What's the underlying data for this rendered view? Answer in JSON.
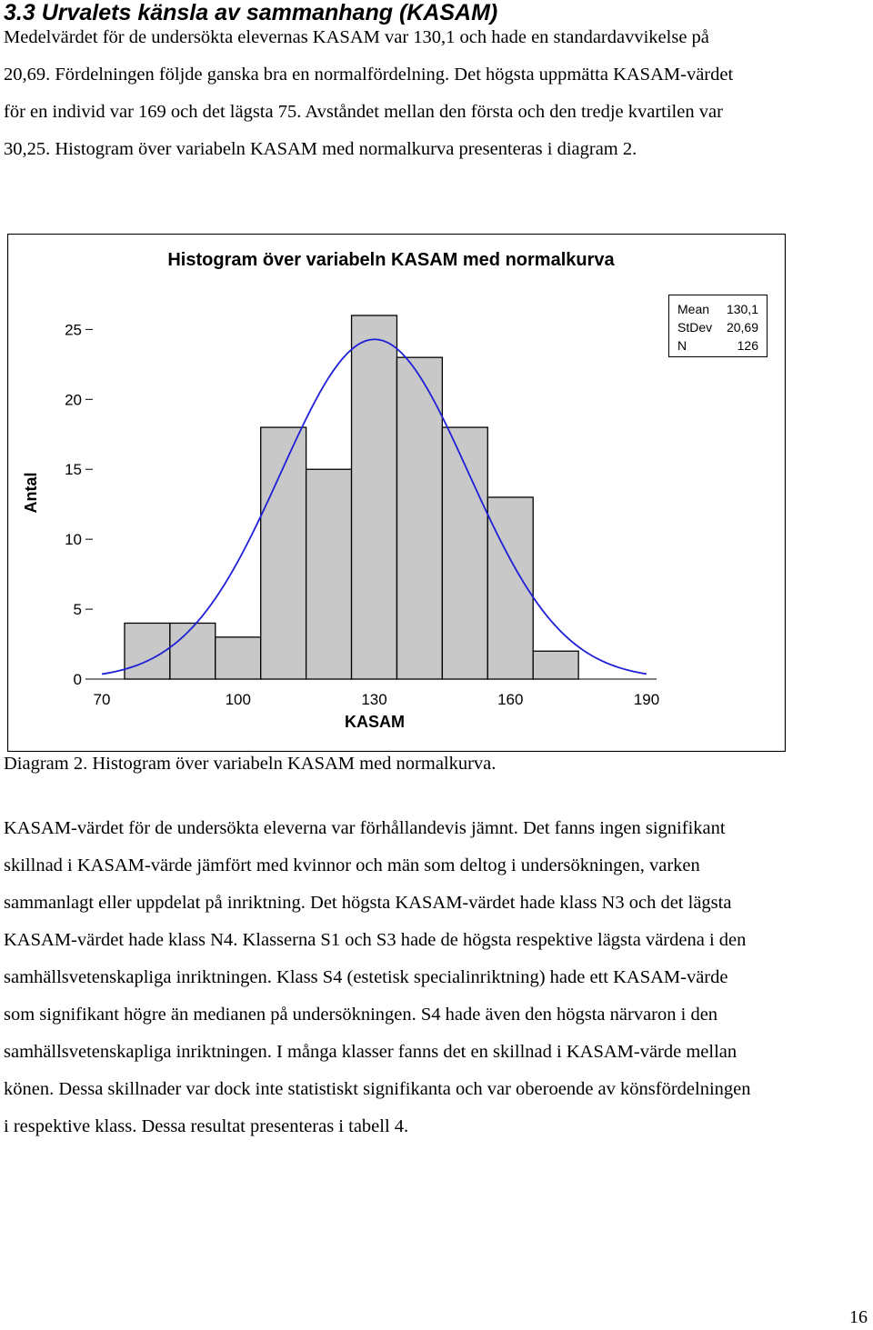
{
  "section": {
    "heading": "3.3 Urvalets känsla av sammanhang (KASAM)",
    "paragraph1_lines": [
      "Medelvärdet för de undersökta elevernas KASAM var 130,1 och hade en standardavvikelse på",
      "20,69. Fördelningen följde ganska bra en normalfördelning. Det högsta uppmätta KASAM-värdet",
      "för en individ var 169 och det lägsta 75. Avståndet mellan den första och den tredje kvartilen var",
      "30,25. Histogram över variabeln KASAM med normalkurva presenteras i diagram 2."
    ],
    "caption": "Diagram 2. Histogram över variabeln KASAM med normalkurva.",
    "paragraph2_lines": [
      "KASAM-värdet för de undersökta eleverna var förhållandevis jämnt. Det fanns ingen signifikant",
      "skillnad i KASAM-värde jämfört med kvinnor och män som deltog i undersökningen, varken",
      "sammanlagt eller uppdelat på inriktning. Det högsta KASAM-värdet hade klass N3 och det lägsta",
      "KASAM-värdet hade klass N4. Klasserna S1 och S3 hade de högsta respektive lägsta värdena i den",
      "samhällsvetenskapliga inriktningen. Klass S4 (estetisk specialinriktning) hade ett KASAM-värde",
      "som signifikant högre än medianen på undersökningen. S4 hade även den högsta närvaron i den",
      "samhällsvetenskapliga inriktningen. I många klasser fanns det en skillnad i KASAM-värde mellan",
      "könen. Dessa skillnader var dock inte statistiskt signifikanta och var oberoende av könsfördelningen",
      "i respektive klass.  Dessa resultat presenteras i tabell 4."
    ],
    "page_number": "16"
  },
  "chart_data": {
    "type": "bar",
    "title": "Histogram över variabeln KASAM med normalkurva",
    "xlabel": "KASAM",
    "ylabel": "Antal",
    "x_ticks": [
      "70",
      "100",
      "130",
      "160",
      "190"
    ],
    "y_ticks": [
      "0",
      "5",
      "10",
      "15",
      "20",
      "25"
    ],
    "xlim": [
      70,
      190
    ],
    "ylim": [
      0,
      26
    ],
    "bin_width": 10,
    "bins": [
      {
        "start": 75,
        "end": 85,
        "count": 4
      },
      {
        "start": 85,
        "end": 95,
        "count": 4
      },
      {
        "start": 95,
        "end": 105,
        "count": 3
      },
      {
        "start": 105,
        "end": 115,
        "count": 18
      },
      {
        "start": 115,
        "end": 125,
        "count": 15
      },
      {
        "start": 125,
        "end": 135,
        "count": 26
      },
      {
        "start": 135,
        "end": 145,
        "count": 23
      },
      {
        "start": 145,
        "end": 155,
        "count": 18
      },
      {
        "start": 155,
        "end": 165,
        "count": 13
      },
      {
        "start": 165,
        "end": 175,
        "count": 2
      }
    ],
    "normal_curve": {
      "mean": 130.1,
      "stdev": 20.69,
      "n": 126
    },
    "stats_box": {
      "position": "top-right",
      "rows": [
        {
          "label": "Mean",
          "value": "130,1"
        },
        {
          "label": "StDev",
          "value": "20,69"
        },
        {
          "label": "N",
          "value": "126"
        }
      ]
    },
    "bar_color": "#c8c8c8",
    "curve_color": "#1f1fd6",
    "grid": false
  }
}
